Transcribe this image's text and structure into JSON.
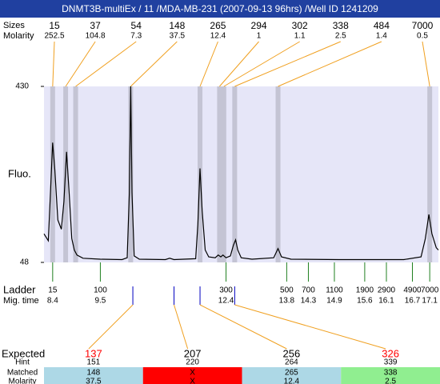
{
  "title": "DNMT3B-multiEx / 11 /MDA-MB-231 (2007-09-13 96hrs) /Well ID 1241209",
  "chart_data": {
    "type": "line",
    "y_label": "Fluo.",
    "x": [
      8.2,
      8.3,
      8.35,
      8.4,
      8.45,
      8.52,
      8.6,
      8.66,
      8.72,
      8.78,
      8.84,
      8.9,
      8.96,
      9.1,
      9.5,
      10.0,
      10.12,
      10.17,
      10.2,
      10.23,
      10.28,
      10.4,
      11.0,
      11.1,
      11.2,
      11.7,
      11.75,
      11.8,
      11.85,
      11.92,
      12.0,
      12.15,
      12.22,
      12.28,
      12.33,
      12.4,
      12.5,
      12.57,
      12.62,
      12.67,
      12.75,
      13.0,
      13.5,
      13.6,
      13.68,
      13.9,
      15.0,
      16.5,
      16.9,
      17.0,
      17.08,
      17.15,
      17.25,
      17.3
    ],
    "series": [
      {
        "color": "#000000",
        "values": [
          110,
          95,
          200,
          308,
          250,
          140,
          120,
          180,
          288,
          200,
          100,
          75,
          64,
          57,
          55,
          54,
          58,
          200,
          430,
          200,
          62,
          55,
          54,
          57,
          54,
          56,
          130,
          252,
          160,
          75,
          60,
          58,
          64,
          60,
          64,
          58,
          62,
          85,
          97,
          75,
          58,
          55,
          58,
          78,
          60,
          55,
          54,
          54,
          60,
          100,
          152,
          110,
          80,
          75
        ]
      }
    ],
    "xlim": [
      8.2,
      17.3
    ],
    "ylim": [
      48,
      430
    ],
    "yticks": [
      48,
      430
    ],
    "peaks": {
      "size_label": "Sizes",
      "molarity_label": "Molarity",
      "items": [
        {
          "size": 15,
          "molarity": 252.5,
          "time": 8.4
        },
        {
          "size": 37,
          "molarity": 104.8,
          "time": 8.7
        },
        {
          "size": 54,
          "molarity": 7.3,
          "time": 8.93
        },
        {
          "size": 148,
          "molarity": 37.5,
          "time": 10.2
        },
        {
          "size": 265,
          "molarity": 12.4,
          "time": 11.8
        },
        {
          "size": 294,
          "molarity": 1,
          "time": 12.25
        },
        {
          "size": 302,
          "molarity": 1.1,
          "time": 12.35
        },
        {
          "size": 338,
          "molarity": 2.5,
          "time": 12.6
        },
        {
          "size": 484,
          "molarity": 1.4,
          "time": 13.6
        },
        {
          "size": 7000,
          "molarity": 0.5,
          "time": 17.1
        }
      ]
    },
    "ladder": {
      "label": "Ladder",
      "time_label": "Mig. time",
      "items": [
        {
          "size": 15,
          "time": 8.4
        },
        {
          "size": 100,
          "time": 9.5
        },
        {
          "size": 300,
          "time": 12.4
        },
        {
          "size": 500,
          "time": 13.8
        },
        {
          "size": 700,
          "time": 14.3
        },
        {
          "size": 1100,
          "time": 14.9
        },
        {
          "size": 1900,
          "time": 15.6
        },
        {
          "size": 2900,
          "time": 16.1
        },
        {
          "size": 4900,
          "time": 16.7
        },
        {
          "size": 7000,
          "time": 17.1
        }
      ]
    }
  },
  "expected": {
    "labels": [
      "Expected",
      "Hint",
      "Matched",
      "Molarity"
    ],
    "columns": [
      {
        "expected": 137,
        "expected_color": "#ff0000",
        "hint": 151,
        "hint_time": 10.25,
        "matched": 148,
        "molarity": 37.5,
        "color": "#add8e6"
      },
      {
        "expected": 207,
        "expected_color": "#000000",
        "hint": 220,
        "hint_time": 11.2,
        "matched": "X",
        "molarity": "X",
        "color": "#ff0000"
      },
      {
        "expected": 256,
        "expected_color": "#000000",
        "hint": 264,
        "hint_time": 11.8,
        "matched": 265,
        "molarity": 12.4,
        "color": "#add8e6"
      },
      {
        "expected": 326,
        "expected_color": "#ff0000",
        "hint": 339,
        "hint_time": 12.6,
        "matched": 338,
        "molarity": 2.5,
        "color": "#90ee90"
      }
    ]
  }
}
